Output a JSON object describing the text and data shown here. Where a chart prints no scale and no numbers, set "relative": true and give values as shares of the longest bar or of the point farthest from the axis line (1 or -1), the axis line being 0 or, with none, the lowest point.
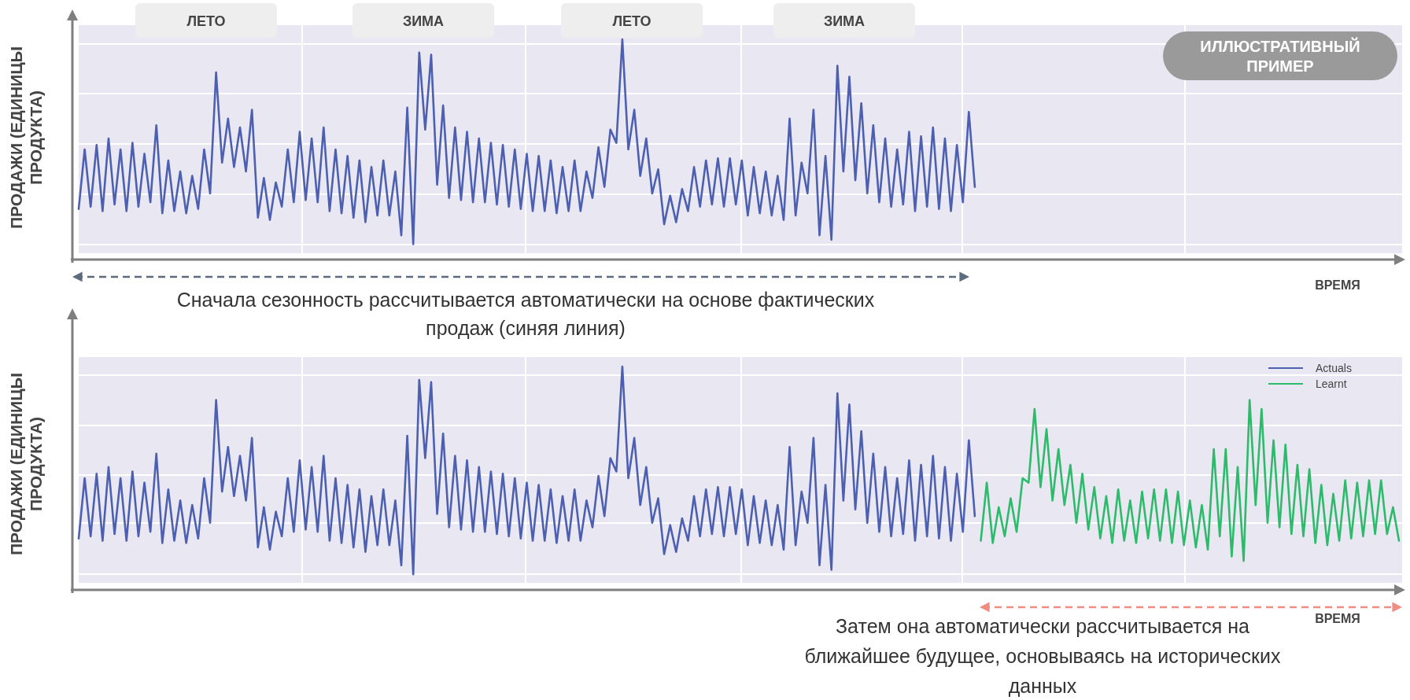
{
  "chart_data": [
    {
      "type": "line",
      "relative": true,
      "grid": true,
      "ylabel": "ПРОДАЖИ (ЕДИНИЦЫ ПРОДУКТА)",
      "xlabel": "ВРЕМЯ",
      "annotations": [
        "ЛЕТО",
        "ЗИМА",
        "ЛЕТО",
        "ЗИМА",
        "ИЛЛЮСТРАТИВНЫЙ ПРИМЕР",
        "Сначала сезонность рассчитывается автоматически на основе фактических продаж (синяя линия)"
      ],
      "categories": [
        null,
        null,
        null,
        null,
        null,
        null,
        null,
        null,
        null,
        null,
        null,
        null,
        null,
        null,
        null,
        null,
        null,
        null,
        null,
        null,
        null,
        null,
        null,
        null,
        null,
        null,
        null,
        null,
        null,
        null,
        null,
        null,
        null,
        null,
        null,
        null,
        null,
        null,
        null,
        null,
        null,
        null,
        null,
        null,
        null,
        null,
        null,
        null,
        null,
        null,
        null,
        null,
        null,
        null,
        null,
        null,
        null,
        null,
        null,
        null,
        null,
        null,
        null,
        null,
        null,
        null,
        null,
        null,
        null,
        null,
        null,
        null,
        null,
        null,
        null,
        null,
        null,
        null,
        null,
        null,
        null,
        null,
        null,
        null,
        null,
        null,
        null,
        null,
        null,
        null,
        null,
        null,
        null,
        null,
        null,
        null,
        null,
        null,
        null,
        null,
        null,
        null,
        null,
        null,
        null,
        null,
        null,
        null,
        null,
        null,
        null,
        null,
        null,
        null,
        null,
        null,
        null,
        null,
        null,
        null,
        null,
        null,
        null,
        null,
        null,
        null,
        null,
        null,
        null,
        null,
        null,
        null,
        null,
        null,
        null,
        null,
        null,
        null,
        null,
        null,
        null,
        null,
        null,
        null,
        null,
        null,
        null,
        null,
        null,
        null,
        null,
        null,
        null,
        null,
        null,
        null,
        null,
        null,
        null,
        null,
        null,
        null,
        null,
        null,
        null,
        null,
        null,
        null,
        null,
        null,
        null,
        null,
        null,
        null,
        null,
        null,
        null,
        null,
        null,
        null,
        null,
        null,
        null,
        null,
        null,
        null,
        null,
        null,
        null,
        null,
        null,
        null,
        null,
        null,
        null,
        null,
        null,
        null,
        null,
        null,
        null,
        null,
        null,
        null,
        null,
        null,
        null,
        null,
        null,
        null,
        null,
        null,
        null,
        null,
        null,
        null,
        null,
        null,
        null,
        null,
        null,
        null
      ],
      "series": [
        {
          "color": "#4c5fb0",
          "values": [
            0.23,
            0.5,
            0.24,
            0.52,
            0.22,
            0.55,
            0.25,
            0.5,
            0.22,
            0.53,
            0.24,
            0.48,
            0.26,
            0.61,
            0.21,
            0.45,
            0.22,
            0.4,
            0.21,
            0.38,
            0.23,
            0.5,
            0.3,
            0.85,
            0.44,
            0.64,
            0.42,
            0.6,
            0.4,
            0.68,
            0.19,
            0.37,
            0.18,
            0.35,
            0.24,
            0.5,
            0.26,
            0.58,
            0.27,
            0.55,
            0.26,
            0.6,
            0.22,
            0.5,
            0.21,
            0.47,
            0.19,
            0.45,
            0.17,
            0.42,
            0.2,
            0.45,
            0.2,
            0.4,
            0.11,
            0.69,
            0.07,
            0.94,
            0.59,
            0.93,
            0.34,
            0.7,
            0.28,
            0.6,
            0.27,
            0.58,
            0.26,
            0.55,
            0.26,
            0.53,
            0.25,
            0.52,
            0.24,
            0.5,
            0.23,
            0.48,
            0.22,
            0.47,
            0.22,
            0.45,
            0.21,
            0.42,
            0.22,
            0.45,
            0.22,
            0.4,
            0.28,
            0.51,
            0.33,
            0.59,
            0.53,
            1.0,
            0.5,
            0.68,
            0.38,
            0.55,
            0.3,
            0.41,
            0.16,
            0.29,
            0.17,
            0.32,
            0.22,
            0.42,
            0.24,
            0.45,
            0.25,
            0.46,
            0.24,
            0.46,
            0.25,
            0.45,
            0.2,
            0.42,
            0.21,
            0.4,
            0.2,
            0.38,
            0.18,
            0.64,
            0.2,
            0.44,
            0.3,
            0.68,
            0.11,
            0.47,
            0.09,
            0.88,
            0.4,
            0.83,
            0.36,
            0.71,
            0.3,
            0.61,
            0.26,
            0.55,
            0.24,
            0.5,
            0.25,
            0.58,
            0.22,
            0.56,
            0.24,
            0.6,
            0.23,
            0.55,
            0.22,
            0.52,
            0.26,
            0.67,
            0.33,
            null,
            null,
            null,
            null,
            null,
            null,
            null,
            null,
            null,
            null,
            null,
            null,
            null,
            null,
            null,
            null,
            null,
            null,
            null,
            null,
            null,
            null,
            null,
            null,
            null,
            null,
            null,
            null,
            null,
            null,
            null,
            null,
            null,
            null,
            null,
            null,
            null,
            null,
            null,
            null,
            null,
            null,
            null,
            null,
            null,
            null,
            null,
            null,
            null,
            null,
            null,
            null,
            null,
            null,
            null,
            null,
            null,
            null,
            null,
            null,
            null,
            null,
            null,
            null,
            null,
            null,
            null,
            null,
            null,
            null,
            null
          ]
        }
      ]
    },
    {
      "type": "line",
      "relative": true,
      "grid": true,
      "legend": "top right",
      "ylabel": "ПРОДАЖИ (ЕДИНИЦЫ ПРОДУКТА)",
      "xlabel": "ВРЕМЯ",
      "annotations": [
        "Затем она автоматически рассчитывается на ближайшее будущее, основываясь на исторических данных"
      ],
      "categories": [
        null,
        null,
        null,
        null,
        null,
        null,
        null,
        null,
        null,
        null,
        null,
        null,
        null,
        null,
        null,
        null,
        null,
        null,
        null,
        null,
        null,
        null,
        null,
        null,
        null,
        null,
        null,
        null,
        null,
        null,
        null,
        null,
        null,
        null,
        null,
        null,
        null,
        null,
        null,
        null,
        null,
        null,
        null,
        null,
        null,
        null,
        null,
        null,
        null,
        null,
        null,
        null,
        null,
        null,
        null,
        null,
        null,
        null,
        null,
        null,
        null,
        null,
        null,
        null,
        null,
        null,
        null,
        null,
        null,
        null,
        null,
        null,
        null,
        null,
        null,
        null,
        null,
        null,
        null,
        null,
        null,
        null,
        null,
        null,
        null,
        null,
        null,
        null,
        null,
        null,
        null,
        null,
        null,
        null,
        null,
        null,
        null,
        null,
        null,
        null,
        null,
        null,
        null,
        null,
        null,
        null,
        null,
        null,
        null,
        null,
        null,
        null,
        null,
        null,
        null,
        null,
        null,
        null,
        null,
        null,
        null,
        null,
        null,
        null,
        null,
        null,
        null,
        null,
        null,
        null,
        null,
        null,
        null,
        null,
        null,
        null,
        null,
        null,
        null,
        null,
        null,
        null,
        null,
        null,
        null,
        null,
        null,
        null,
        null,
        null,
        null,
        null,
        null,
        null,
        null,
        null,
        null,
        null,
        null,
        null,
        null,
        null,
        null,
        null,
        null,
        null,
        null,
        null,
        null,
        null,
        null,
        null,
        null,
        null,
        null,
        null,
        null,
        null,
        null,
        null,
        null,
        null,
        null,
        null,
        null,
        null,
        null,
        null,
        null,
        null,
        null,
        null,
        null,
        null,
        null,
        null,
        null,
        null,
        null,
        null,
        null,
        null,
        null,
        null,
        null,
        null,
        null,
        null,
        null,
        null,
        null,
        null,
        null,
        null,
        null,
        null,
        null,
        null,
        null,
        null,
        null,
        null
      ],
      "series": [
        {
          "name": "Actuals",
          "color": "#4c5fb0",
          "values": [
            0.23,
            0.5,
            0.24,
            0.52,
            0.22,
            0.55,
            0.25,
            0.5,
            0.22,
            0.53,
            0.24,
            0.48,
            0.26,
            0.61,
            0.21,
            0.45,
            0.22,
            0.4,
            0.21,
            0.38,
            0.23,
            0.5,
            0.3,
            0.85,
            0.44,
            0.64,
            0.42,
            0.6,
            0.4,
            0.68,
            0.19,
            0.37,
            0.18,
            0.35,
            0.24,
            0.5,
            0.26,
            0.58,
            0.27,
            0.55,
            0.26,
            0.6,
            0.22,
            0.5,
            0.21,
            0.47,
            0.19,
            0.45,
            0.17,
            0.42,
            0.2,
            0.45,
            0.2,
            0.4,
            0.11,
            0.69,
            0.07,
            0.94,
            0.59,
            0.93,
            0.34,
            0.7,
            0.28,
            0.6,
            0.27,
            0.58,
            0.26,
            0.55,
            0.26,
            0.53,
            0.25,
            0.52,
            0.24,
            0.5,
            0.23,
            0.48,
            0.22,
            0.47,
            0.22,
            0.45,
            0.21,
            0.42,
            0.22,
            0.45,
            0.22,
            0.4,
            0.28,
            0.51,
            0.33,
            0.59,
            0.53,
            1.0,
            0.5,
            0.68,
            0.38,
            0.55,
            0.3,
            0.41,
            0.16,
            0.29,
            0.17,
            0.32,
            0.22,
            0.42,
            0.24,
            0.45,
            0.25,
            0.46,
            0.24,
            0.46,
            0.25,
            0.45,
            0.2,
            0.42,
            0.21,
            0.4,
            0.2,
            0.38,
            0.18,
            0.64,
            0.2,
            0.44,
            0.3,
            0.68,
            0.11,
            0.47,
            0.09,
            0.88,
            0.4,
            0.83,
            0.36,
            0.71,
            0.3,
            0.61,
            0.26,
            0.55,
            0.24,
            0.5,
            0.25,
            0.58,
            0.22,
            0.56,
            0.24,
            0.6,
            0.23,
            0.55,
            0.22,
            0.52,
            0.26,
            0.67,
            0.33,
            null,
            null,
            null,
            null,
            null,
            null,
            null,
            null,
            null,
            null,
            null,
            null,
            null,
            null,
            null,
            null,
            null,
            null,
            null,
            null,
            null,
            null,
            null,
            null,
            null,
            null,
            null,
            null,
            null,
            null,
            null,
            null,
            null,
            null,
            null,
            null,
            null,
            null,
            null,
            null,
            null,
            null,
            null,
            null,
            null,
            null,
            null,
            null,
            null,
            null,
            null,
            null,
            null,
            null,
            null,
            null,
            null,
            null,
            null,
            null,
            null,
            null,
            null,
            null,
            null,
            null,
            null,
            null,
            null,
            null,
            null
          ]
        },
        {
          "name": "Learnt",
          "color": "#2dbb6b",
          "values": [
            null,
            null,
            null,
            null,
            null,
            null,
            null,
            null,
            null,
            null,
            null,
            null,
            null,
            null,
            null,
            null,
            null,
            null,
            null,
            null,
            null,
            null,
            null,
            null,
            null,
            null,
            null,
            null,
            null,
            null,
            null,
            null,
            null,
            null,
            null,
            null,
            null,
            null,
            null,
            null,
            null,
            null,
            null,
            null,
            null,
            null,
            null,
            null,
            null,
            null,
            null,
            null,
            null,
            null,
            null,
            null,
            null,
            null,
            null,
            null,
            null,
            null,
            null,
            null,
            null,
            null,
            null,
            null,
            null,
            null,
            null,
            null,
            null,
            null,
            null,
            null,
            null,
            null,
            null,
            null,
            null,
            null,
            null,
            null,
            null,
            null,
            null,
            null,
            null,
            null,
            null,
            null,
            null,
            null,
            null,
            null,
            null,
            null,
            null,
            null,
            null,
            null,
            null,
            null,
            null,
            null,
            null,
            null,
            null,
            null,
            null,
            null,
            null,
            null,
            null,
            null,
            null,
            null,
            null,
            null,
            null,
            null,
            null,
            null,
            null,
            null,
            null,
            null,
            null,
            null,
            null,
            null,
            null,
            null,
            null,
            null,
            null,
            null,
            null,
            null,
            null,
            null,
            null,
            null,
            null,
            null,
            null,
            null,
            null,
            null,
            null,
            0.22,
            0.48,
            0.21,
            0.37,
            0.24,
            0.41,
            0.26,
            0.5,
            0.48,
            0.81,
            0.46,
            0.72,
            0.4,
            0.63,
            0.38,
            0.56,
            0.3,
            0.52,
            0.27,
            0.46,
            0.23,
            0.42,
            0.21,
            0.45,
            0.22,
            0.4,
            0.21,
            0.44,
            0.23,
            0.45,
            0.22,
            0.45,
            0.21,
            0.44,
            0.2,
            0.4,
            0.19,
            0.38,
            0.18,
            0.63,
            0.24,
            0.63,
            0.15,
            0.55,
            0.13,
            0.85,
            0.38,
            0.81,
            0.3,
            0.67,
            0.28,
            0.65,
            0.25,
            0.56,
            0.24,
            0.54,
            0.21,
            0.47,
            0.2,
            0.43,
            0.22,
            0.49,
            0.23,
            0.48,
            0.24,
            0.49,
            0.25,
            0.49,
            0.25,
            0.37,
            0.22
          ]
        }
      ]
    }
  ]
}
